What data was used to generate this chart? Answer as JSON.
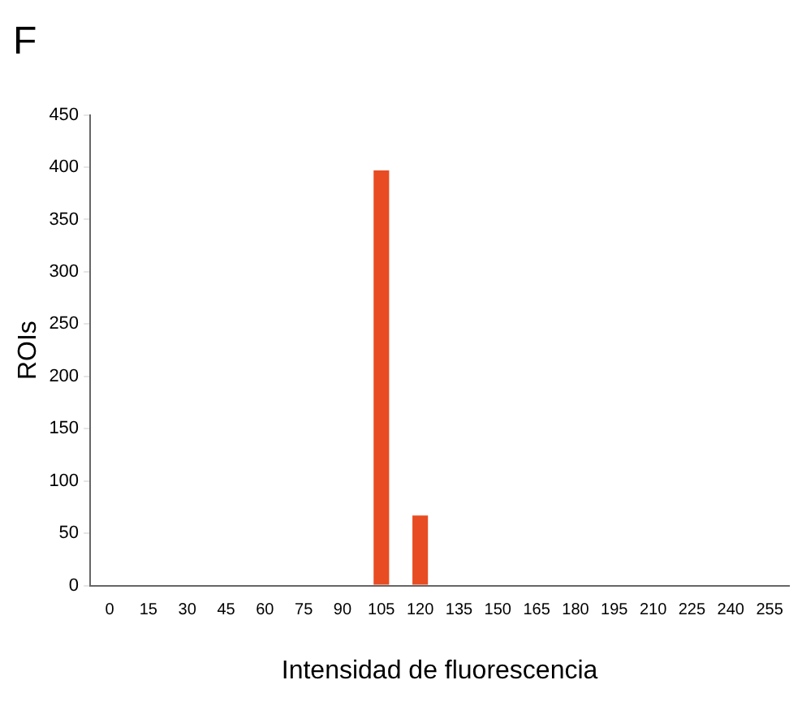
{
  "chart_data": {
    "type": "bar",
    "title": "F",
    "xlabel": "Intensidad de fluorescencia",
    "ylabel": "ROIs",
    "categories": [
      "0",
      "15",
      "30",
      "45",
      "60",
      "75",
      "90",
      "105",
      "120",
      "135",
      "150",
      "165",
      "180",
      "195",
      "210",
      "225",
      "240",
      "255"
    ],
    "values": [
      0,
      0,
      0,
      0,
      0,
      0,
      0,
      397,
      67,
      null,
      0,
      0,
      0,
      0,
      0,
      0,
      0,
      0
    ],
    "color": "#e84c22",
    "ylim": [
      0,
      450
    ],
    "yticks": [
      0,
      50,
      100,
      150,
      200,
      250,
      300,
      350,
      400,
      450
    ],
    "grid": false,
    "legend": false
  }
}
